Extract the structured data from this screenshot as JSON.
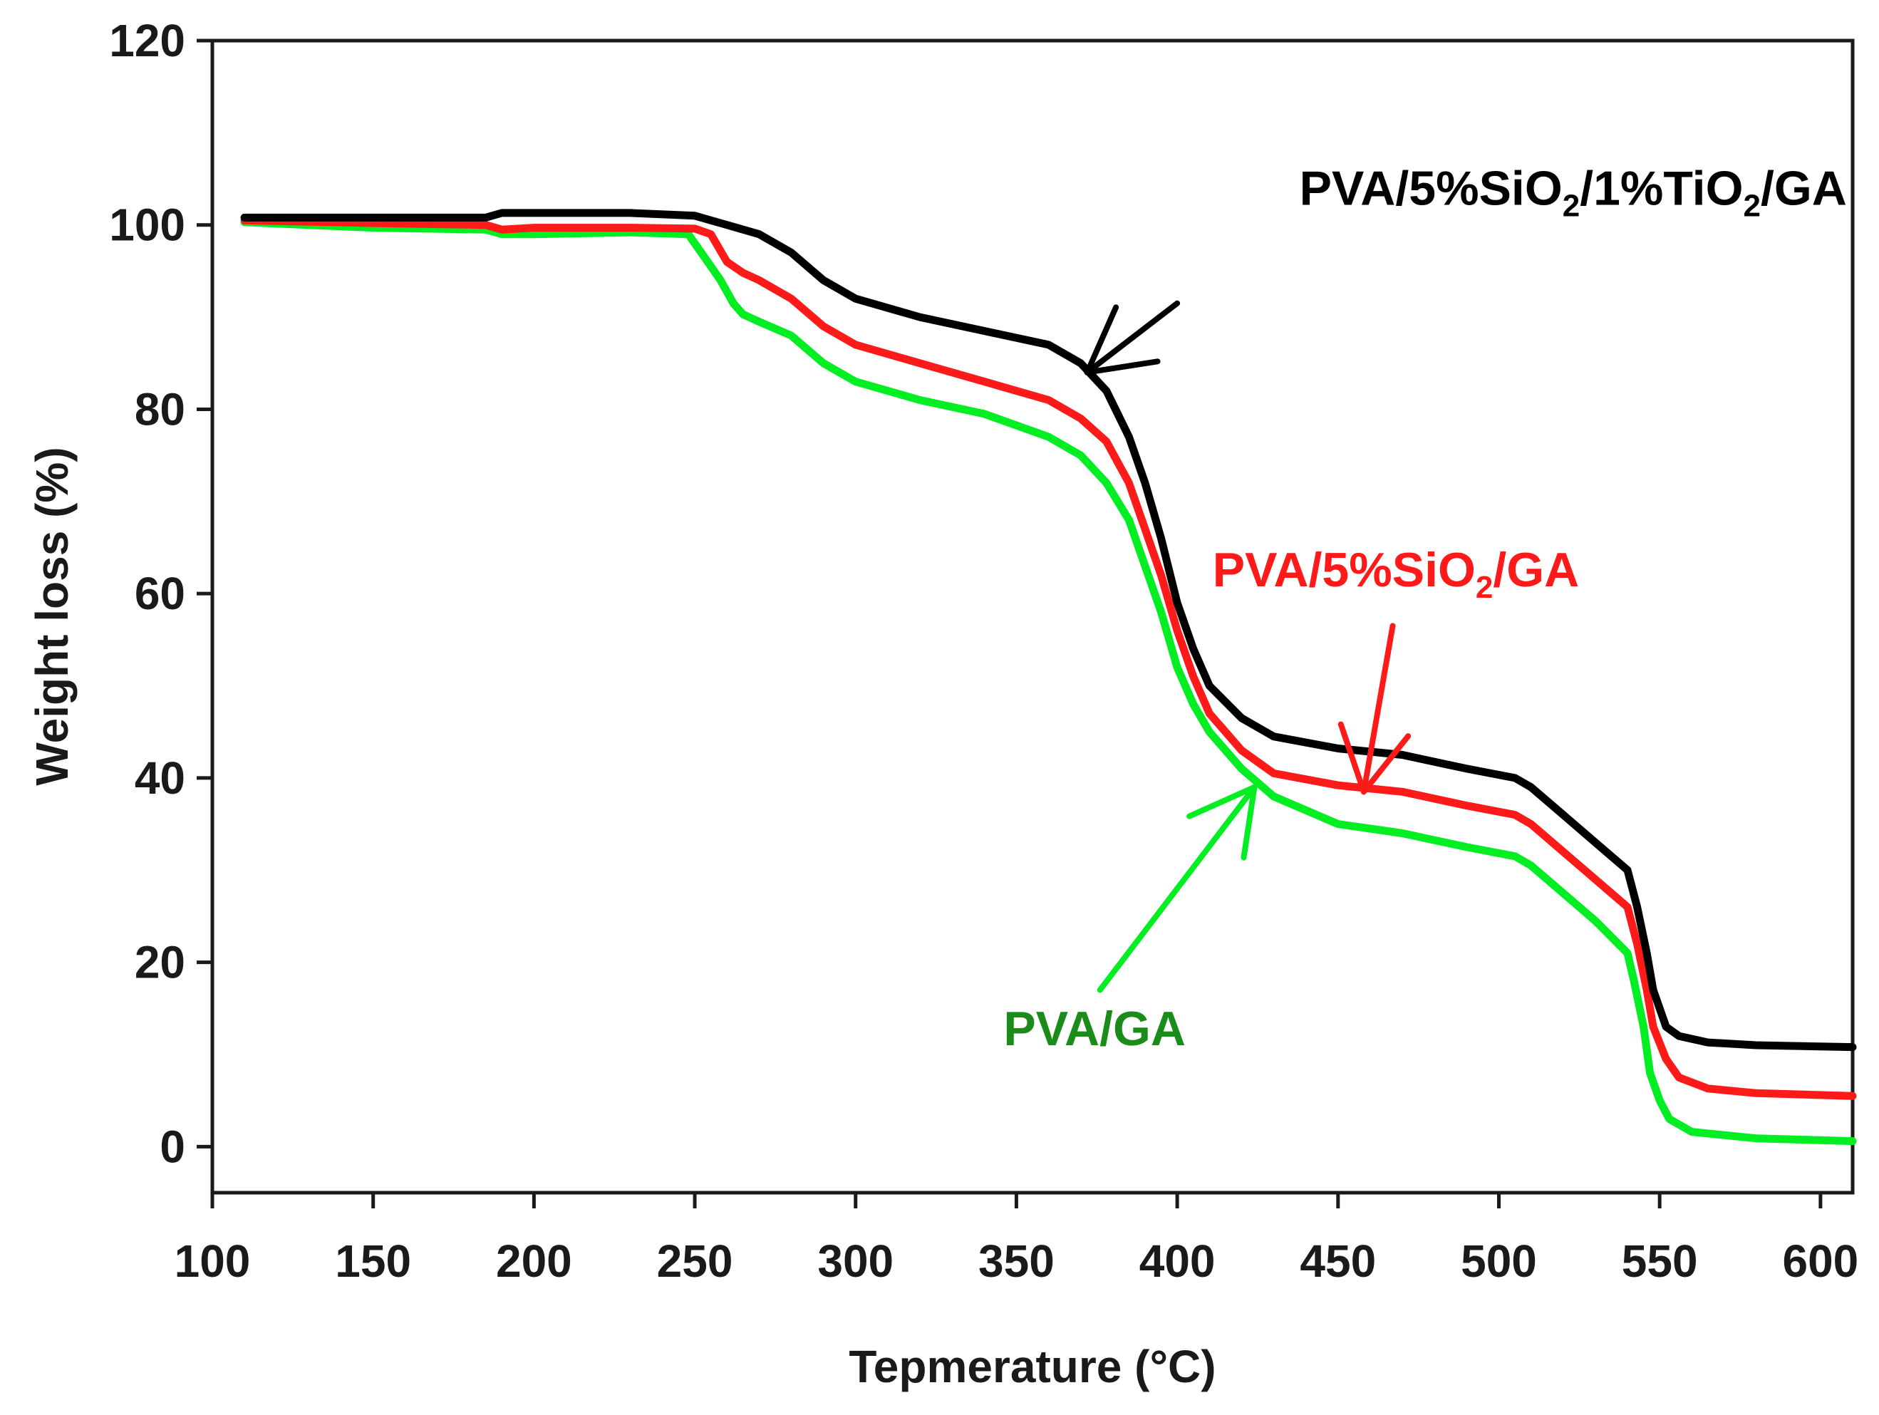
{
  "chart_data": {
    "type": "line",
    "title": "",
    "xlabel": "Tepmerature (°C)",
    "ylabel": "Weight loss (%)",
    "xlim": [
      100,
      610
    ],
    "ylim": [
      -5,
      120
    ],
    "xticks": [
      100,
      150,
      200,
      250,
      300,
      350,
      400,
      450,
      500,
      550,
      600
    ],
    "yticks": [
      0,
      20,
      40,
      60,
      80,
      100,
      120
    ],
    "grid": false,
    "series": [
      {
        "name": "PVA/5%SiO2/1%TiO2/GA",
        "color": "#000000",
        "label_parts": [
          "PVA/5%SiO",
          "2",
          "/1%TiO",
          "2",
          "/GA"
        ],
        "label_anchor": [
          438,
          102.2
        ],
        "arrow_from": [
          400,
          91.5
        ],
        "arrow_to": [
          372,
          84
        ],
        "x": [
          110,
          150,
          185,
          190,
          200,
          230,
          250,
          260,
          270,
          280,
          290,
          300,
          320,
          340,
          360,
          370,
          378,
          385,
          390,
          395,
          400,
          405,
          410,
          420,
          430,
          450,
          470,
          490,
          505,
          510,
          520,
          530,
          540,
          543,
          546,
          548,
          552,
          556,
          565,
          580,
          610
        ],
        "y": [
          100.8,
          100.8,
          100.8,
          101.3,
          101.3,
          101.3,
          101,
          100,
          99,
          97,
          94,
          92,
          90,
          88.5,
          87,
          85,
          82,
          77,
          72,
          66,
          59,
          54,
          50,
          46.5,
          44.5,
          43.2,
          42.5,
          41,
          40,
          39,
          36,
          33,
          30,
          26,
          21,
          17,
          13,
          12,
          11.3,
          11,
          10.8
        ]
      },
      {
        "name": "PVA/5%SiO2/GA",
        "color": "#ff1a1a",
        "label_parts": [
          "PVA/5%SiO",
          "2",
          "/GA"
        ],
        "label_anchor": [
          411,
          60.8
        ],
        "arrow_from": [
          467,
          56.5
        ],
        "arrow_to": [
          458,
          38.5
        ],
        "x": [
          110,
          150,
          185,
          190,
          200,
          230,
          250,
          255,
          260,
          265,
          270,
          280,
          290,
          300,
          320,
          340,
          360,
          370,
          378,
          385,
          390,
          395,
          400,
          405,
          410,
          420,
          430,
          450,
          470,
          490,
          505,
          510,
          520,
          530,
          540,
          543,
          546,
          548,
          552,
          556,
          565,
          580,
          610
        ],
        "y": [
          100.5,
          100.2,
          100,
          99.5,
          99.7,
          99.7,
          99.6,
          99,
          96,
          94.8,
          94,
          92,
          89,
          87,
          85,
          83,
          81,
          79,
          76.5,
          72,
          67,
          62,
          56,
          51,
          47,
          43,
          40.5,
          39.2,
          38.5,
          37,
          36,
          35,
          32,
          29,
          26,
          22,
          17,
          13,
          9.5,
          7.5,
          6.3,
          5.8,
          5.5
        ]
      },
      {
        "name": "PVA/GA",
        "color": "#00ee22",
        "label_color": "#1a8c1a",
        "label_parts": [
          "PVA/GA"
        ],
        "label_anchor": [
          346,
          11
        ],
        "arrow_from": [
          376,
          17
        ],
        "arrow_to": [
          424,
          39
        ],
        "x": [
          110,
          150,
          185,
          190,
          200,
          230,
          248,
          252,
          258,
          262,
          265,
          270,
          280,
          290,
          300,
          320,
          340,
          360,
          370,
          378,
          385,
          390,
          395,
          400,
          405,
          410,
          420,
          430,
          450,
          470,
          490,
          505,
          510,
          520,
          530,
          540,
          542,
          545,
          547,
          550,
          553,
          560,
          580,
          610
        ],
        "y": [
          100.3,
          99.7,
          99.5,
          99,
          99,
          99.2,
          99,
          97,
          94,
          91.5,
          90.3,
          89.5,
          88,
          85,
          83,
          81,
          79.5,
          77,
          75,
          72,
          68,
          63,
          58,
          52,
          48,
          45,
          41,
          38,
          35,
          34,
          32.5,
          31.5,
          30.5,
          27.5,
          24.5,
          21,
          18,
          13,
          8,
          5,
          3,
          1.6,
          0.9,
          0.6
        ]
      }
    ]
  }
}
